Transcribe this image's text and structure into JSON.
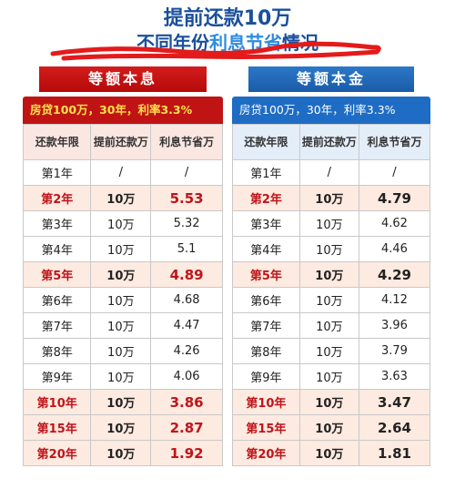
{
  "title": {
    "line1": "提前还款10万",
    "line2_prefix": "不同年份",
    "line2_highlight": "利息节省",
    "line2_suffix": "情况"
  },
  "left": {
    "banner": "等额本息",
    "info": "房贷100万，30年，利率3.3%",
    "headers": [
      "还款年限",
      "提前还款万",
      "利息节省万"
    ],
    "rows": [
      {
        "year": "第1年",
        "amount": "/",
        "saving": "/",
        "highlight": false
      },
      {
        "year": "第2年",
        "amount": "10万",
        "saving": "5.53",
        "highlight": true
      },
      {
        "year": "第3年",
        "amount": "10万",
        "saving": "5.32",
        "highlight": false
      },
      {
        "year": "第4年",
        "amount": "10万",
        "saving": "5.1",
        "highlight": false
      },
      {
        "year": "第5年",
        "amount": "10万",
        "saving": "4.89",
        "highlight": true
      },
      {
        "year": "第6年",
        "amount": "10万",
        "saving": "4.68",
        "highlight": false
      },
      {
        "year": "第7年",
        "amount": "10万",
        "saving": "4.47",
        "highlight": false
      },
      {
        "year": "第8年",
        "amount": "10万",
        "saving": "4.26",
        "highlight": false
      },
      {
        "year": "第9年",
        "amount": "10万",
        "saving": "4.06",
        "highlight": false
      },
      {
        "year": "第10年",
        "amount": "10万",
        "saving": "3.86",
        "highlight": true
      },
      {
        "year": "第15年",
        "amount": "10万",
        "saving": "2.87",
        "highlight": true
      },
      {
        "year": "第20年",
        "amount": "10万",
        "saving": "1.92",
        "highlight": true
      }
    ]
  },
  "right": {
    "banner": "等额本金",
    "info": "房贷100万，30年，利率3.3%",
    "headers": [
      "还款年限",
      "提前还款万",
      "利息节省万"
    ],
    "rows": [
      {
        "year": "第1年",
        "amount": "/",
        "saving": "/",
        "highlight": false
      },
      {
        "year": "第2年",
        "amount": "10万",
        "saving": "4.79",
        "highlight": true
      },
      {
        "year": "第3年",
        "amount": "10万",
        "saving": "4.62",
        "highlight": false
      },
      {
        "year": "第4年",
        "amount": "10万",
        "saving": "4.46",
        "highlight": false
      },
      {
        "year": "第5年",
        "amount": "10万",
        "saving": "4.29",
        "highlight": true
      },
      {
        "year": "第6年",
        "amount": "10万",
        "saving": "4.12",
        "highlight": false
      },
      {
        "year": "第7年",
        "amount": "10万",
        "saving": "3.96",
        "highlight": false
      },
      {
        "year": "第8年",
        "amount": "10万",
        "saving": "3.79",
        "highlight": false
      },
      {
        "year": "第9年",
        "amount": "10万",
        "saving": "3.63",
        "highlight": false
      },
      {
        "year": "第10年",
        "amount": "10万",
        "saving": "3.47",
        "highlight": true
      },
      {
        "year": "第15年",
        "amount": "10万",
        "saving": "2.64",
        "highlight": true
      },
      {
        "year": "第20年",
        "amount": "10万",
        "saving": "1.81",
        "highlight": true
      }
    ]
  },
  "colors": {
    "title_blue": "#1a4f9c",
    "highlight_red": "#c0141a",
    "banner_red": "#c01414",
    "banner_blue": "#1f6cc4",
    "info_yellow": "#ffe14a"
  }
}
